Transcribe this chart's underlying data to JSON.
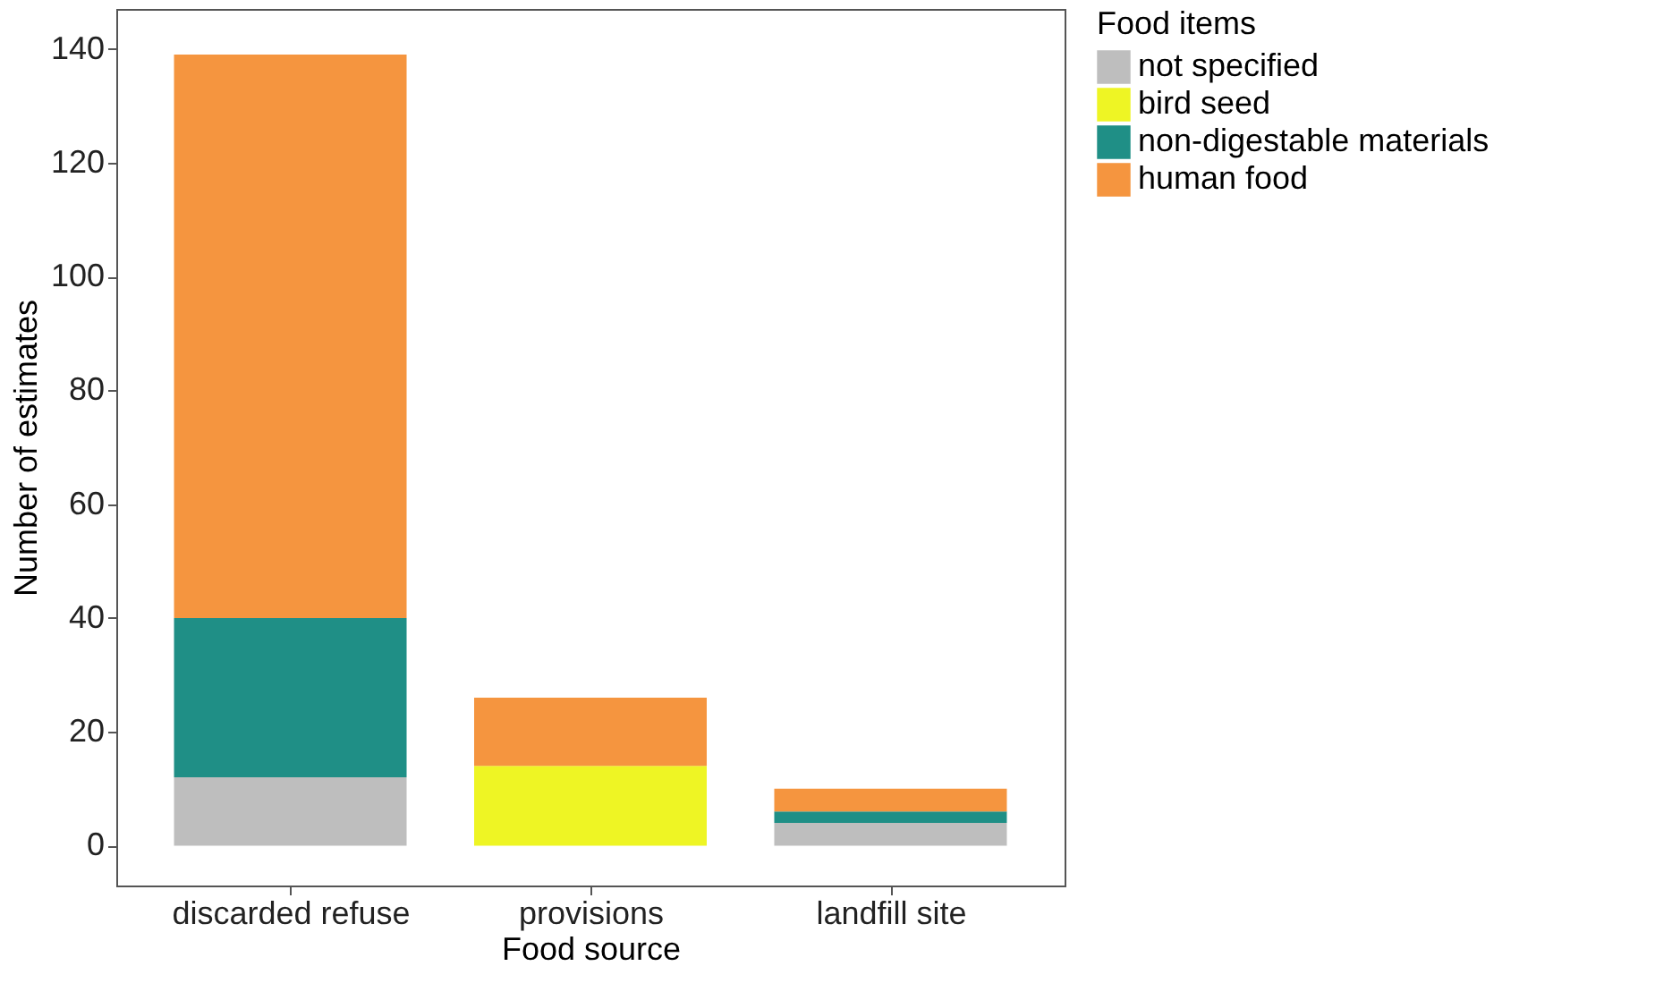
{
  "chart_data": {
    "type": "bar",
    "stacked": true,
    "xlabel": "Food source",
    "ylabel": "Number of estimates",
    "legend_title": "Food items",
    "categories": [
      "discarded refuse",
      "provisions",
      "landfill site"
    ],
    "series": [
      {
        "name": "not specified",
        "color": "#bebebe",
        "values": [
          12,
          null,
          4
        ]
      },
      {
        "name": "bird seed",
        "color": "#eef524",
        "values": [
          null,
          14,
          null
        ]
      },
      {
        "name": "non-digestable materials",
        "color": "#1f8f86",
        "values": [
          28,
          null,
          2
        ]
      },
      {
        "name": "human food",
        "color": "#f5953f",
        "values": [
          99,
          12,
          4
        ]
      }
    ],
    "ylim": [
      -7,
      147
    ],
    "yticks": [
      0,
      20,
      40,
      60,
      80,
      100,
      120,
      140
    ],
    "grid": false,
    "legend": "right"
  }
}
